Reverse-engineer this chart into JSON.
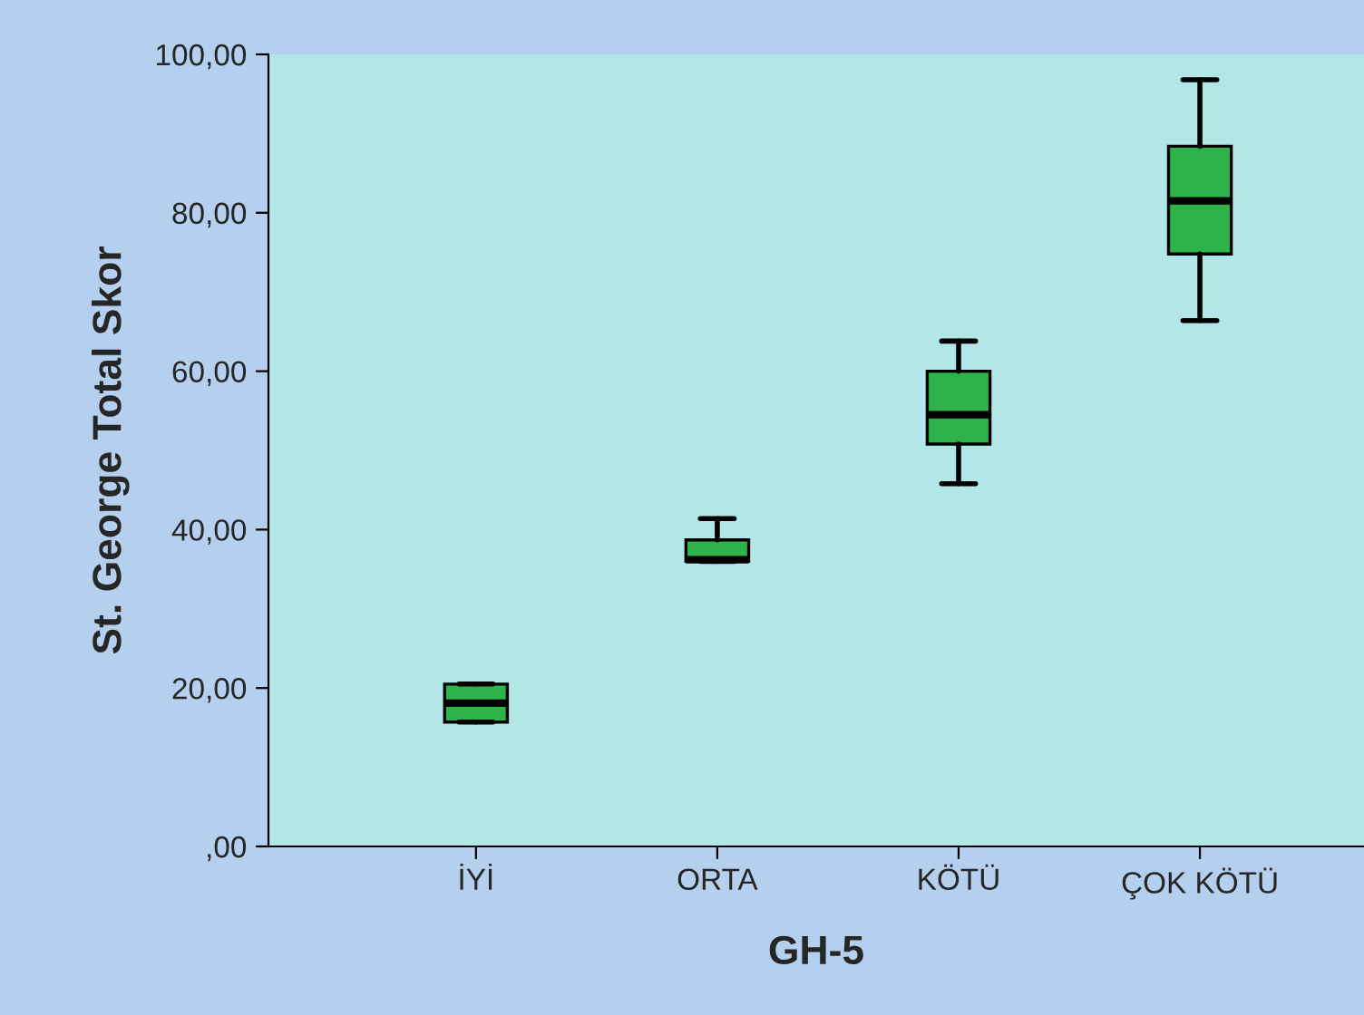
{
  "chart_data": {
    "type": "box",
    "xlabel": "GH-5",
    "ylabel": "St. George Total Skor",
    "categories": [
      "İYİ",
      "ORTA",
      "KÖTÜ",
      "ÇOK KÖTÜ"
    ],
    "boxes": [
      {
        "low": 15.7,
        "q1": 15.7,
        "median": 18.1,
        "q3": 20.5,
        "high": 20.5
      },
      {
        "low": 36.0,
        "q1": 36.0,
        "median": 36.2,
        "q3": 38.7,
        "high": 41.4
      },
      {
        "low": 45.8,
        "q1": 50.8,
        "median": 54.5,
        "q3": 60.0,
        "high": 63.8
      },
      {
        "low": 66.4,
        "q1": 74.8,
        "median": 81.5,
        "q3": 88.4,
        "high": 96.8
      }
    ],
    "color": "#2db34a",
    "ylim": [
      0,
      100
    ],
    "yticks": [
      {
        "value": 0,
        "label": ",00"
      },
      {
        "value": 20,
        "label": "20,00"
      },
      {
        "value": 40,
        "label": "40,00"
      },
      {
        "value": 60,
        "label": "60,00"
      },
      {
        "value": 80,
        "label": "80,00"
      },
      {
        "value": 100,
        "label": "100,00"
      }
    ],
    "grid": false
  }
}
